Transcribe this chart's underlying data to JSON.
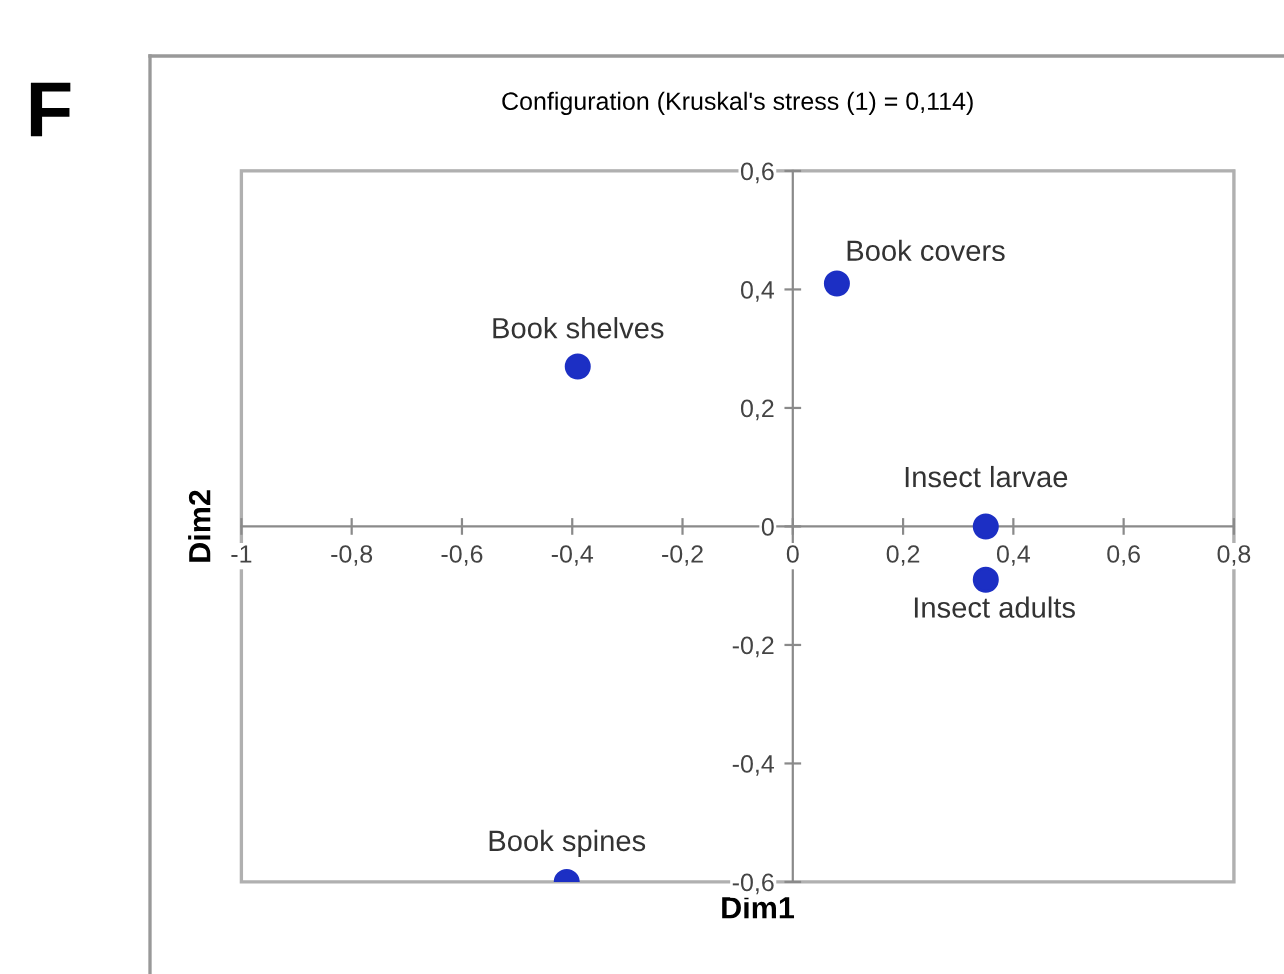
{
  "chart_data": {
    "type": "scatter",
    "title": "Configuration (Kruskal's stress (1) = 0,114)",
    "xlabel": "Dim1",
    "ylabel": "Dim2",
    "x": [
      0.08,
      -0.39,
      0.35,
      0.35,
      -0.41
    ],
    "series": [
      {
        "color": "#1c2fc4",
        "values": [
          0.41,
          0.27,
          0.0,
          -0.09,
          -0.6
        ]
      }
    ],
    "annotations": [
      {
        "text": "Book covers",
        "x": 0.08,
        "y": 0.41
      },
      {
        "text": "Book shelves",
        "x": -0.39,
        "y": 0.27
      },
      {
        "text": "Insect larvae",
        "x": 0.35,
        "y": 0.0
      },
      {
        "text": "Insect adults",
        "x": 0.35,
        "y": -0.09
      },
      {
        "text": "Book spines",
        "x": -0.41,
        "y": -0.6
      },
      "F"
    ],
    "xlim": [
      -1,
      0.8
    ],
    "ylim": [
      -0.6,
      0.6
    ],
    "xticks": [
      {
        "value": -1,
        "label": "-1"
      },
      {
        "value": -0.8,
        "label": "-0,8"
      },
      {
        "value": -0.6,
        "label": "-0,6"
      },
      {
        "value": -0.4,
        "label": "-0,4"
      },
      {
        "value": -0.2,
        "label": "-0,2"
      },
      0,
      {
        "value": 0.2,
        "label": "0,2"
      },
      {
        "value": 0.4,
        "label": "0,4"
      },
      {
        "value": 0.6,
        "label": "0,6"
      },
      {
        "value": 0.8,
        "label": "0,8"
      }
    ],
    "yticks": [
      {
        "value": -0.6,
        "label": "-0,6"
      },
      {
        "value": -0.4,
        "label": "-0,4"
      },
      {
        "value": -0.2,
        "label": "-0,2"
      },
      0,
      {
        "value": 0.2,
        "label": "0,2"
      },
      {
        "value": 0.4,
        "label": "0,4"
      },
      {
        "value": 0.6,
        "label": "0,6"
      }
    ],
    "grid": false,
    "marker": "circle"
  }
}
